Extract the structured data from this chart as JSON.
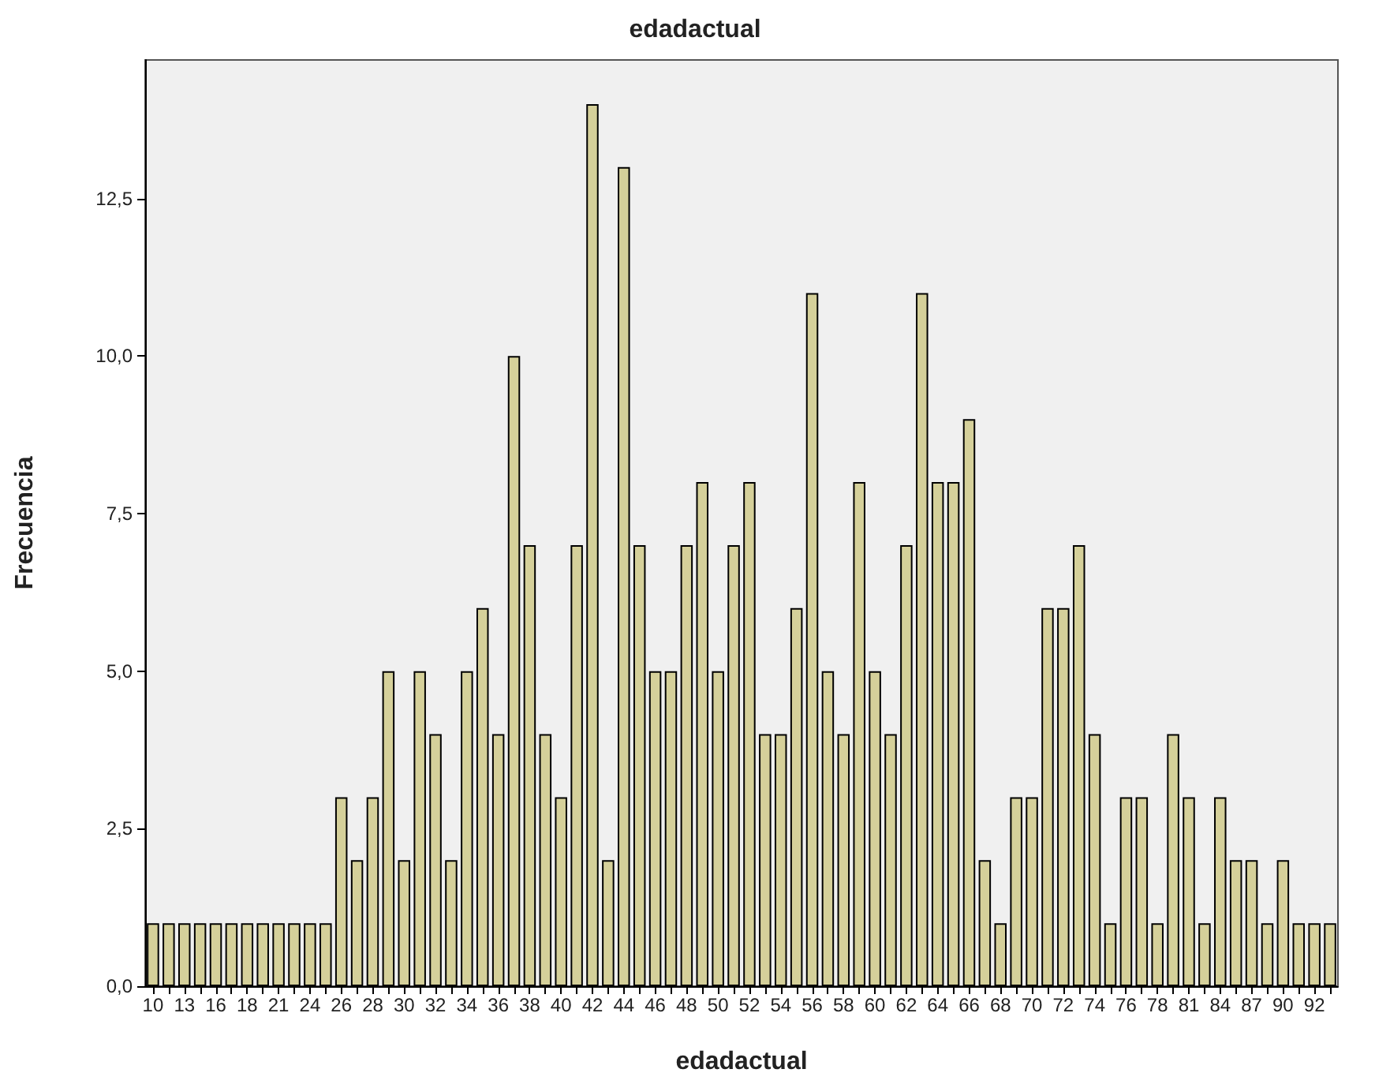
{
  "chart_data": {
    "type": "bar",
    "title": "edadactual",
    "xlabel": "edadactual",
    "ylabel": "Frecuencia",
    "categories": [
      "10",
      null,
      "13",
      null,
      "16",
      null,
      "18",
      null,
      "21",
      null,
      "24",
      null,
      "26",
      null,
      "28",
      null,
      "30",
      null,
      "32",
      null,
      "34",
      null,
      "36",
      null,
      "38",
      null,
      "40",
      null,
      "42",
      null,
      "44",
      null,
      "46",
      null,
      "48",
      null,
      "50",
      null,
      "52",
      null,
      "54",
      null,
      "56",
      null,
      "58",
      null,
      "60",
      null,
      "62",
      null,
      "64",
      null,
      "66",
      null,
      "68",
      null,
      "70",
      null,
      "72",
      null,
      "74",
      null,
      "76",
      null,
      "78",
      null,
      "81",
      null,
      "84",
      null,
      "87",
      null,
      "90",
      null,
      "92",
      null
    ],
    "values": [
      1,
      1,
      1,
      1,
      1,
      1,
      1,
      1,
      1,
      1,
      1,
      1,
      3,
      2,
      3,
      5,
      2,
      5,
      4,
      2,
      5,
      6,
      4,
      10,
      7,
      4,
      3,
      7,
      14,
      2,
      13,
      7,
      5,
      5,
      7,
      8,
      5,
      7,
      8,
      4,
      4,
      6,
      11,
      5,
      4,
      8,
      5,
      4,
      7,
      11,
      8,
      8,
      9,
      2,
      1,
      3,
      3,
      6,
      6,
      7,
      4,
      1,
      3,
      3,
      1,
      4,
      3,
      1,
      3,
      2,
      2,
      1,
      2,
      1,
      1,
      1
    ],
    "color": "#d5d09a",
    "ylim": [
      0,
      14.7
    ],
    "yticks": [
      {
        "value": 0,
        "label": "0,0"
      },
      {
        "value": 2.5,
        "label": "2,5"
      },
      {
        "value": 5,
        "label": "5,0"
      },
      {
        "value": 7.5,
        "label": "7,5"
      },
      {
        "value": 10,
        "label": "10,0"
      },
      {
        "value": 12.5,
        "label": "12,5"
      }
    ],
    "grid": false
  }
}
